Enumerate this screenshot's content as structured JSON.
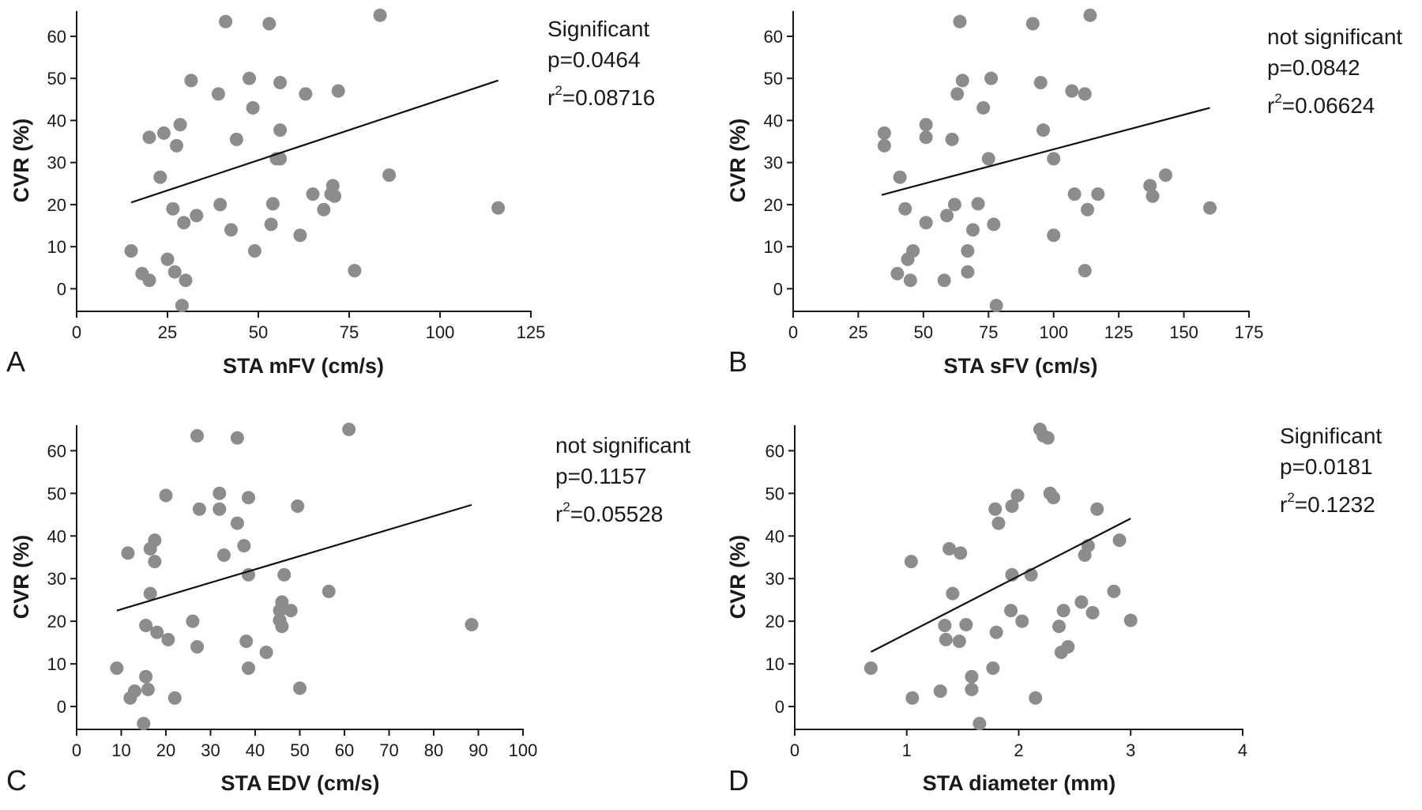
{
  "colors": {
    "point": "#8c8c8c",
    "line": "#111111",
    "axis": "#1a1a1a"
  },
  "chart_data": [
    {
      "panel": "A",
      "type": "scatter",
      "xlabel": "STA mFV (cm/s)",
      "ylabel": "CVR (%)",
      "xlim": [
        0,
        125
      ],
      "ylim": [
        -5,
        66
      ],
      "xticks": [
        0,
        25,
        50,
        75,
        100,
        125
      ],
      "yticks": [
        0,
        10,
        20,
        30,
        40,
        50,
        60
      ],
      "annotation": {
        "significance": "Significant",
        "p": "p=0.0464",
        "r2_prefix": "r",
        "r2_sup": "2",
        "r2_value": "=0.08716"
      },
      "regression": {
        "x": [
          15,
          116
        ],
        "y": [
          20.5,
          49.5
        ]
      },
      "points": [
        [
          41,
          63.5
        ],
        [
          53,
          63
        ],
        [
          83.5,
          65
        ],
        [
          31.5,
          49.5
        ],
        [
          47.5,
          50
        ],
        [
          56,
          49
        ],
        [
          39,
          46.3
        ],
        [
          63,
          46.3
        ],
        [
          72,
          47
        ],
        [
          48.5,
          43
        ],
        [
          28.5,
          39
        ],
        [
          56,
          37.7
        ],
        [
          20,
          36
        ],
        [
          24,
          37
        ],
        [
          44,
          35.5
        ],
        [
          27.5,
          34
        ],
        [
          55,
          30.9
        ],
        [
          56,
          30.9
        ],
        [
          23,
          26.5
        ],
        [
          86,
          27
        ],
        [
          70.5,
          24.5
        ],
        [
          33,
          17.4
        ],
        [
          65,
          22.5
        ],
        [
          70,
          22.5
        ],
        [
          71,
          22
        ],
        [
          26.5,
          19
        ],
        [
          39.5,
          20
        ],
        [
          54,
          20.2
        ],
        [
          68,
          18.8
        ],
        [
          29.5,
          15.7
        ],
        [
          42.5,
          14
        ],
        [
          53.5,
          15.3
        ],
        [
          61.5,
          12.7
        ],
        [
          116,
          19.2
        ],
        [
          15,
          9
        ],
        [
          49,
          9
        ],
        [
          25,
          7
        ],
        [
          18,
          3.6
        ],
        [
          27,
          4
        ],
        [
          76.5,
          4.3
        ],
        [
          20,
          2
        ],
        [
          30,
          2
        ],
        [
          29,
          -4
        ]
      ]
    },
    {
      "panel": "B",
      "type": "scatter",
      "xlabel": "STA sFV (cm/s)",
      "ylabel": "CVR (%)",
      "xlim": [
        0,
        175
      ],
      "ylim": [
        -5,
        66
      ],
      "xticks": [
        0,
        25,
        50,
        75,
        100,
        125,
        150,
        175
      ],
      "yticks": [
        0,
        10,
        20,
        30,
        40,
        50,
        60
      ],
      "annotation": {
        "significance": "not significant",
        "p": "p=0.0842",
        "r2_prefix": "r",
        "r2_sup": "2",
        "r2_value": "=0.06624"
      },
      "regression": {
        "x": [
          34,
          160
        ],
        "y": [
          22.3,
          43
        ]
      },
      "points": [
        [
          64,
          63.5
        ],
        [
          92,
          63
        ],
        [
          114,
          65
        ],
        [
          65,
          49.5
        ],
        [
          76,
          50
        ],
        [
          95,
          49
        ],
        [
          63,
          46.3
        ],
        [
          112,
          46.3
        ],
        [
          107,
          47
        ],
        [
          73,
          43
        ],
        [
          51,
          39
        ],
        [
          96,
          37.7
        ],
        [
          35,
          37
        ],
        [
          51,
          36
        ],
        [
          61,
          35.5
        ],
        [
          35,
          34
        ],
        [
          75,
          30.9
        ],
        [
          100,
          30.9
        ],
        [
          41,
          26.5
        ],
        [
          143,
          27
        ],
        [
          137,
          24.5
        ],
        [
          108,
          22.5
        ],
        [
          117,
          22.5
        ],
        [
          138,
          22
        ],
        [
          62,
          20
        ],
        [
          71,
          20.2
        ],
        [
          43,
          19
        ],
        [
          113,
          18.8
        ],
        [
          59,
          17.4
        ],
        [
          51,
          15.7
        ],
        [
          69,
          14
        ],
        [
          77,
          15.3
        ],
        [
          100,
          12.7
        ],
        [
          160,
          19.2
        ],
        [
          46,
          9
        ],
        [
          67,
          9
        ],
        [
          44,
          7
        ],
        [
          40,
          3.6
        ],
        [
          67,
          4
        ],
        [
          112,
          4.3
        ],
        [
          45,
          2
        ],
        [
          58,
          2
        ],
        [
          78,
          -4
        ]
      ]
    },
    {
      "panel": "C",
      "type": "scatter",
      "xlabel": "STA EDV (cm/s)",
      "ylabel": "CVR (%)",
      "xlim": [
        0,
        100
      ],
      "ylim": [
        -5,
        66
      ],
      "xticks": [
        0,
        10,
        20,
        30,
        40,
        50,
        60,
        70,
        80,
        90,
        100
      ],
      "yticks": [
        0,
        10,
        20,
        30,
        40,
        50,
        60
      ],
      "annotation": {
        "significance": "not significant",
        "p": "p=0.1157",
        "r2_prefix": "r",
        "r2_sup": "2",
        "r2_value": "=0.05528"
      },
      "regression": {
        "x": [
          9,
          88.5
        ],
        "y": [
          22.5,
          47.3
        ]
      },
      "points": [
        [
          27,
          63.5
        ],
        [
          36,
          63
        ],
        [
          61,
          65
        ],
        [
          20,
          49.5
        ],
        [
          32,
          50
        ],
        [
          38.5,
          49
        ],
        [
          27.5,
          46.3
        ],
        [
          32,
          46.3
        ],
        [
          49.5,
          47
        ],
        [
          36,
          43
        ],
        [
          17.5,
          39
        ],
        [
          37.5,
          37.7
        ],
        [
          11.5,
          36
        ],
        [
          16.5,
          37
        ],
        [
          33,
          35.5
        ],
        [
          17.5,
          34
        ],
        [
          38.5,
          30.9
        ],
        [
          46.5,
          30.9
        ],
        [
          16.5,
          26.5
        ],
        [
          56.5,
          27
        ],
        [
          46,
          24.5
        ],
        [
          45.5,
          22.5
        ],
        [
          48,
          22.5
        ],
        [
          45.5,
          20.2
        ],
        [
          26,
          20
        ],
        [
          45.5,
          20.2
        ],
        [
          15.5,
          19
        ],
        [
          46,
          18.8
        ],
        [
          18,
          17.4
        ],
        [
          20.5,
          15.7
        ],
        [
          27,
          14
        ],
        [
          38,
          15.3
        ],
        [
          42.5,
          12.7
        ],
        [
          88.5,
          19.2
        ],
        [
          9,
          9
        ],
        [
          38.5,
          9
        ],
        [
          15.5,
          7
        ],
        [
          13,
          3.6
        ],
        [
          16,
          4
        ],
        [
          50,
          4.3
        ],
        [
          12,
          2
        ],
        [
          22,
          2
        ],
        [
          15,
          -4
        ]
      ]
    },
    {
      "panel": "D",
      "type": "scatter",
      "xlabel": "STA diameter (mm)",
      "ylabel": "CVR (%)",
      "xlim": [
        0,
        4
      ],
      "ylim": [
        -5,
        66
      ],
      "xticks": [
        0,
        1,
        2,
        3,
        4
      ],
      "yticks": [
        0,
        10,
        20,
        30,
        40,
        50,
        60
      ],
      "annotation": {
        "significance": "Significant",
        "p": "p=0.0181",
        "r2_prefix": "r",
        "r2_sup": "2",
        "r2_value": "=0.1232"
      },
      "regression": {
        "x": [
          0.68,
          3.0
        ],
        "y": [
          12.8,
          44.1
        ]
      },
      "points": [
        [
          2.19,
          65
        ],
        [
          2.22,
          63.5
        ],
        [
          2.26,
          63
        ],
        [
          2.28,
          50
        ],
        [
          2.31,
          49
        ],
        [
          1.99,
          49.5
        ],
        [
          1.94,
          47
        ],
        [
          1.79,
          46.3
        ],
        [
          2.7,
          46.3
        ],
        [
          1.82,
          43
        ],
        [
          2.9,
          39
        ],
        [
          2.62,
          37.7
        ],
        [
          1.38,
          37
        ],
        [
          1.48,
          36
        ],
        [
          2.59,
          35.5
        ],
        [
          1.04,
          34
        ],
        [
          1.94,
          30.9
        ],
        [
          2.11,
          30.9
        ],
        [
          1.41,
          26.5
        ],
        [
          2.85,
          27
        ],
        [
          2.56,
          24.5
        ],
        [
          1.93,
          22.5
        ],
        [
          2.4,
          22.5
        ],
        [
          2.66,
          22
        ],
        [
          3.0,
          20.2
        ],
        [
          2.03,
          20
        ],
        [
          1.34,
          19
        ],
        [
          1.53,
          19.2
        ],
        [
          2.36,
          18.8
        ],
        [
          1.8,
          17.4
        ],
        [
          1.35,
          15.7
        ],
        [
          1.47,
          15.3
        ],
        [
          2.44,
          14
        ],
        [
          2.38,
          12.7
        ],
        [
          0.68,
          9
        ],
        [
          1.77,
          9
        ],
        [
          1.58,
          7
        ],
        [
          1.3,
          3.6
        ],
        [
          1.58,
          4
        ],
        [
          1.05,
          2
        ],
        [
          2.15,
          2
        ],
        [
          1.65,
          -4
        ]
      ]
    }
  ]
}
